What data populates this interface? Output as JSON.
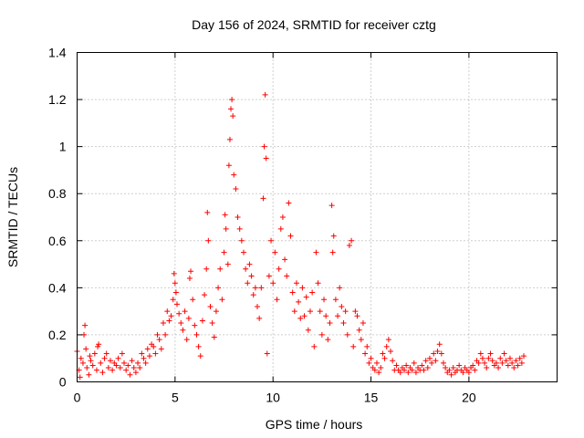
{
  "chart_data": {
    "type": "scatter",
    "title": "Day 156 of 2024, SRMTID for receiver cztg",
    "xlabel": "GPS time / hours",
    "ylabel": "SRMTID / TECUs",
    "xlim": [
      0,
      24.5
    ],
    "ylim": [
      0,
      1.4
    ],
    "xticks": [
      0,
      5,
      10,
      15,
      20
    ],
    "xtick_labels": [
      "0",
      "5",
      "10",
      "15",
      "20"
    ],
    "yticks": [
      0,
      0.2,
      0.4,
      0.6,
      0.8,
      1.0,
      1.2,
      1.4
    ],
    "ytick_labels": [
      "0",
      "0.2",
      "0.4",
      "0.6",
      "0.8",
      "1",
      "1.2",
      "1.4"
    ],
    "grid": true,
    "marker": "+",
    "marker_color": "#ff0000",
    "series": [
      {
        "name": "SRMTID",
        "points": [
          [
            0.0,
            0.13
          ],
          [
            0.1,
            0.05
          ],
          [
            0.15,
            0.02
          ],
          [
            0.2,
            0.1
          ],
          [
            0.3,
            0.08
          ],
          [
            0.35,
            0.2
          ],
          [
            0.4,
            0.24
          ],
          [
            0.45,
            0.14
          ],
          [
            0.5,
            0.06
          ],
          [
            0.6,
            0.03
          ],
          [
            0.65,
            0.11
          ],
          [
            0.7,
            0.09
          ],
          [
            0.8,
            0.07
          ],
          [
            0.9,
            0.12
          ],
          [
            1.0,
            0.05
          ],
          [
            1.05,
            0.15
          ],
          [
            1.1,
            0.16
          ],
          [
            1.2,
            0.08
          ],
          [
            1.3,
            0.04
          ],
          [
            1.4,
            0.1
          ],
          [
            1.5,
            0.12
          ],
          [
            1.6,
            0.06
          ],
          [
            1.7,
            0.09
          ],
          [
            1.8,
            0.05
          ],
          [
            1.9,
            0.08
          ],
          [
            2.0,
            0.07
          ],
          [
            2.1,
            0.1
          ],
          [
            2.2,
            0.06
          ],
          [
            2.3,
            0.12
          ],
          [
            2.4,
            0.08
          ],
          [
            2.5,
            0.05
          ],
          [
            2.6,
            0.07
          ],
          [
            2.7,
            0.03
          ],
          [
            2.8,
            0.09
          ],
          [
            2.9,
            0.06
          ],
          [
            3.0,
            0.04
          ],
          [
            3.1,
            0.08
          ],
          [
            3.2,
            0.06
          ],
          [
            3.3,
            0.12
          ],
          [
            3.4,
            0.1
          ],
          [
            3.5,
            0.08
          ],
          [
            3.6,
            0.14
          ],
          [
            3.7,
            0.11
          ],
          [
            3.8,
            0.16
          ],
          [
            3.9,
            0.15
          ],
          [
            4.0,
            0.12
          ],
          [
            4.1,
            0.2
          ],
          [
            4.2,
            0.18
          ],
          [
            4.3,
            0.14
          ],
          [
            4.4,
            0.25
          ],
          [
            4.5,
            0.2
          ],
          [
            4.6,
            0.3
          ],
          [
            4.7,
            0.26
          ],
          [
            4.8,
            0.28
          ],
          [
            4.9,
            0.35
          ],
          [
            4.95,
            0.46
          ],
          [
            5.0,
            0.42
          ],
          [
            5.05,
            0.38
          ],
          [
            5.1,
            0.33
          ],
          [
            5.2,
            0.29
          ],
          [
            5.3,
            0.25
          ],
          [
            5.4,
            0.22
          ],
          [
            5.5,
            0.3
          ],
          [
            5.6,
            0.18
          ],
          [
            5.7,
            0.27
          ],
          [
            5.75,
            0.44
          ],
          [
            5.8,
            0.47
          ],
          [
            5.9,
            0.35
          ],
          [
            6.0,
            0.24
          ],
          [
            6.1,
            0.2
          ],
          [
            6.2,
            0.15
          ],
          [
            6.3,
            0.11
          ],
          [
            6.4,
            0.26
          ],
          [
            6.5,
            0.37
          ],
          [
            6.6,
            0.48
          ],
          [
            6.65,
            0.72
          ],
          [
            6.7,
            0.6
          ],
          [
            6.8,
            0.32
          ],
          [
            6.9,
            0.25
          ],
          [
            7.0,
            0.19
          ],
          [
            7.1,
            0.3
          ],
          [
            7.2,
            0.4
          ],
          [
            7.3,
            0.48
          ],
          [
            7.4,
            0.35
          ],
          [
            7.5,
            0.55
          ],
          [
            7.55,
            0.71
          ],
          [
            7.6,
            0.65
          ],
          [
            7.7,
            0.5
          ],
          [
            7.75,
            0.92
          ],
          [
            7.8,
            1.03
          ],
          [
            7.85,
            1.16
          ],
          [
            7.9,
            1.2
          ],
          [
            7.95,
            1.13
          ],
          [
            8.0,
            0.88
          ],
          [
            8.1,
            0.82
          ],
          [
            8.2,
            0.7
          ],
          [
            8.3,
            0.65
          ],
          [
            8.4,
            0.6
          ],
          [
            8.5,
            0.55
          ],
          [
            8.6,
            0.48
          ],
          [
            8.7,
            0.42
          ],
          [
            8.8,
            0.5
          ],
          [
            8.9,
            0.45
          ],
          [
            9.0,
            0.37
          ],
          [
            9.1,
            0.4
          ],
          [
            9.2,
            0.32
          ],
          [
            9.3,
            0.27
          ],
          [
            9.4,
            0.4
          ],
          [
            9.5,
            0.78
          ],
          [
            9.55,
            1.0
          ],
          [
            9.6,
            1.22
          ],
          [
            9.65,
            0.95
          ],
          [
            9.7,
            0.12
          ],
          [
            9.8,
            0.45
          ],
          [
            9.9,
            0.6
          ],
          [
            10.0,
            0.42
          ],
          [
            10.1,
            0.55
          ],
          [
            10.2,
            0.35
          ],
          [
            10.3,
            0.48
          ],
          [
            10.4,
            0.65
          ],
          [
            10.5,
            0.7
          ],
          [
            10.6,
            0.52
          ],
          [
            10.7,
            0.45
          ],
          [
            10.8,
            0.76
          ],
          [
            10.9,
            0.62
          ],
          [
            11.0,
            0.38
          ],
          [
            11.1,
            0.3
          ],
          [
            11.2,
            0.42
          ],
          [
            11.3,
            0.34
          ],
          [
            11.4,
            0.27
          ],
          [
            11.5,
            0.4
          ],
          [
            11.6,
            0.28
          ],
          [
            11.7,
            0.36
          ],
          [
            11.8,
            0.22
          ],
          [
            11.9,
            0.3
          ],
          [
            12.0,
            0.38
          ],
          [
            12.1,
            0.15
          ],
          [
            12.2,
            0.55
          ],
          [
            12.3,
            0.42
          ],
          [
            12.4,
            0.3
          ],
          [
            12.5,
            0.2
          ],
          [
            12.6,
            0.35
          ],
          [
            12.7,
            0.28
          ],
          [
            12.8,
            0.18
          ],
          [
            12.9,
            0.25
          ],
          [
            13.0,
            0.75
          ],
          [
            13.05,
            0.55
          ],
          [
            13.1,
            0.62
          ],
          [
            13.2,
            0.35
          ],
          [
            13.3,
            0.28
          ],
          [
            13.4,
            0.4
          ],
          [
            13.5,
            0.32
          ],
          [
            13.6,
            0.25
          ],
          [
            13.7,
            0.3
          ],
          [
            13.8,
            0.2
          ],
          [
            13.9,
            0.58
          ],
          [
            14.0,
            0.6
          ],
          [
            14.1,
            0.15
          ],
          [
            14.2,
            0.3
          ],
          [
            14.3,
            0.28
          ],
          [
            14.4,
            0.22
          ],
          [
            14.5,
            0.18
          ],
          [
            14.6,
            0.25
          ],
          [
            14.7,
            0.12
          ],
          [
            14.8,
            0.15
          ],
          [
            14.9,
            0.08
          ],
          [
            15.0,
            0.1
          ],
          [
            15.1,
            0.06
          ],
          [
            15.2,
            0.05
          ],
          [
            15.3,
            0.08
          ],
          [
            15.4,
            0.04
          ],
          [
            15.5,
            0.06
          ],
          [
            15.6,
            0.12
          ],
          [
            15.7,
            0.1
          ],
          [
            15.8,
            0.15
          ],
          [
            15.9,
            0.18
          ],
          [
            16.0,
            0.13
          ],
          [
            16.1,
            0.09
          ],
          [
            16.2,
            0.05
          ],
          [
            16.3,
            0.07
          ],
          [
            16.4,
            0.05
          ],
          [
            16.5,
            0.04
          ],
          [
            16.6,
            0.06
          ],
          [
            16.7,
            0.05
          ],
          [
            16.8,
            0.07
          ],
          [
            16.9,
            0.04
          ],
          [
            17.0,
            0.06
          ],
          [
            17.1,
            0.05
          ],
          [
            17.2,
            0.08
          ],
          [
            17.3,
            0.04
          ],
          [
            17.4,
            0.06
          ],
          [
            17.5,
            0.05
          ],
          [
            17.6,
            0.07
          ],
          [
            17.7,
            0.05
          ],
          [
            17.8,
            0.09
          ],
          [
            17.9,
            0.06
          ],
          [
            18.0,
            0.1
          ],
          [
            18.1,
            0.08
          ],
          [
            18.2,
            0.12
          ],
          [
            18.3,
            0.09
          ],
          [
            18.4,
            0.13
          ],
          [
            18.5,
            0.16
          ],
          [
            18.6,
            0.12
          ],
          [
            18.7,
            0.08
          ],
          [
            18.8,
            0.06
          ],
          [
            18.9,
            0.04
          ],
          [
            19.0,
            0.05
          ],
          [
            19.1,
            0.03
          ],
          [
            19.2,
            0.06
          ],
          [
            19.3,
            0.04
          ],
          [
            19.4,
            0.05
          ],
          [
            19.5,
            0.07
          ],
          [
            19.6,
            0.05
          ],
          [
            19.7,
            0.04
          ],
          [
            19.8,
            0.06
          ],
          [
            19.9,
            0.05
          ],
          [
            20.0,
            0.04
          ],
          [
            20.1,
            0.06
          ],
          [
            20.2,
            0.07
          ],
          [
            20.3,
            0.05
          ],
          [
            20.4,
            0.09
          ],
          [
            20.5,
            0.08
          ],
          [
            20.6,
            0.12
          ],
          [
            20.7,
            0.1
          ],
          [
            20.8,
            0.08
          ],
          [
            20.9,
            0.06
          ],
          [
            21.0,
            0.1
          ],
          [
            21.1,
            0.12
          ],
          [
            21.2,
            0.09
          ],
          [
            21.3,
            0.07
          ],
          [
            21.4,
            0.08
          ],
          [
            21.5,
            0.06
          ],
          [
            21.6,
            0.1
          ],
          [
            21.7,
            0.08
          ],
          [
            21.8,
            0.12
          ],
          [
            21.9,
            0.09
          ],
          [
            22.0,
            0.07
          ],
          [
            22.1,
            0.1
          ],
          [
            22.2,
            0.08
          ],
          [
            22.3,
            0.06
          ],
          [
            22.4,
            0.09
          ],
          [
            22.5,
            0.07
          ],
          [
            22.6,
            0.1
          ],
          [
            22.7,
            0.08
          ],
          [
            22.8,
            0.11
          ]
        ]
      }
    ]
  }
}
